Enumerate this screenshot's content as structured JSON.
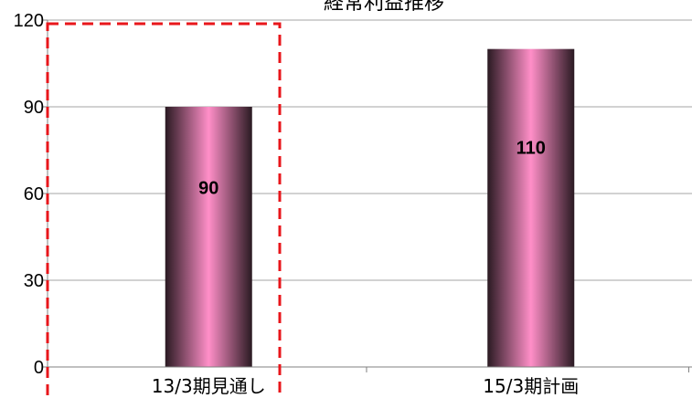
{
  "chart_data": {
    "type": "bar",
    "title": "経常利益推移",
    "categories": [
      "13/3期見通し",
      "15/3期計画"
    ],
    "values": [
      90,
      110
    ],
    "data_labels": [
      "90",
      "110"
    ],
    "ylim": [
      0,
      120
    ],
    "yticks": [
      "0",
      "30",
      "60",
      "90",
      "120"
    ],
    "xlabel": "",
    "ylabel": "",
    "grid": true,
    "legend": "none",
    "colors": {
      "bar_center": "#ff8fc8",
      "bar_edge": "#2a1a22",
      "grid": "#a6a6a6",
      "axis": "#808080",
      "highlight_box": "#e8161b"
    }
  }
}
